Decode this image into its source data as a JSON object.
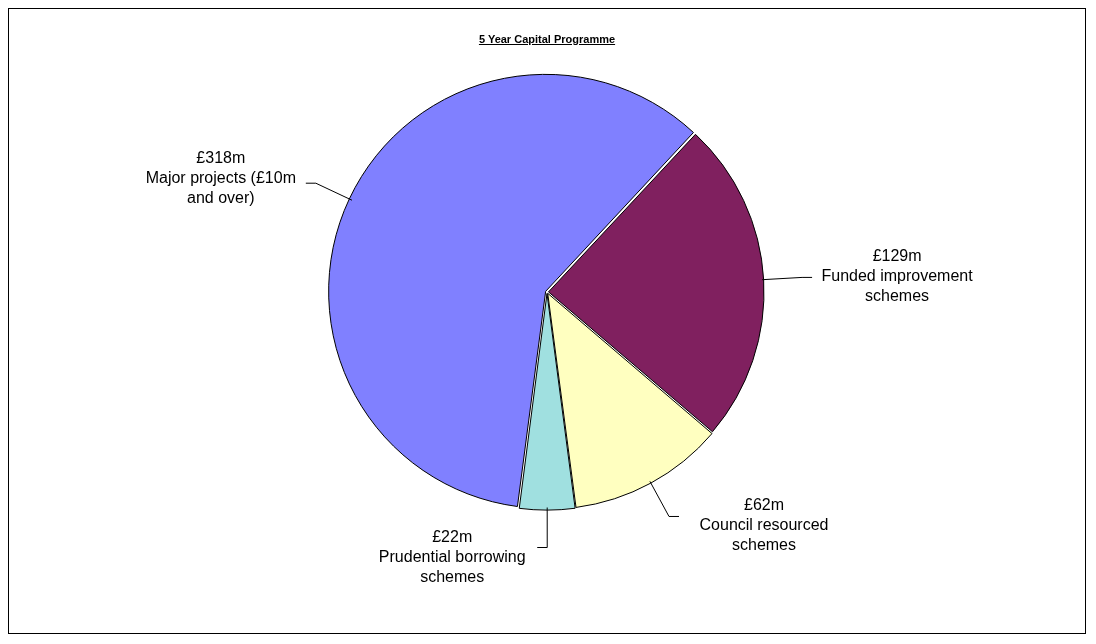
{
  "chart_data": {
    "type": "pie",
    "title": "5 Year Capital Programme",
    "categories": [
      "Funded improvement schemes",
      "Council resourced schemes",
      "Prudential borrowing schemes",
      "Major projects (£10m and over)"
    ],
    "values": [
      129,
      62,
      22,
      318
    ],
    "colors": [
      "#80205f",
      "#ffffc0",
      "#a0e0e0",
      "#8080ff"
    ],
    "value_labels": [
      "£129m",
      "£62m",
      "£22m",
      "£318m"
    ],
    "legend": false
  }
}
